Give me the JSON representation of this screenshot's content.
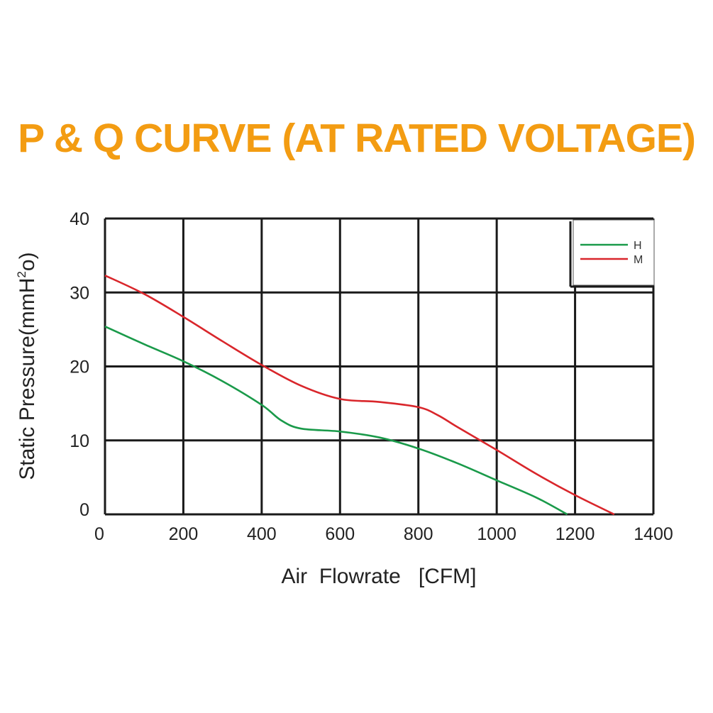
{
  "title": "P & Q CURVE (AT RATED VOLTAGE)",
  "colors": {
    "title": "#f39c12",
    "grid": "#1a1a1a",
    "H": "#1a9a4a",
    "M": "#d9262b"
  },
  "chart_data": {
    "type": "line",
    "title": "P & Q CURVE (AT RATED VOLTAGE)",
    "xlabel": "Air  Flowrate   [CFM]",
    "ylabel_main": "Static Pressure(mmH",
    "ylabel_sup1": "2",
    "ylabel_mid": "o",
    "ylabel_end": ")",
    "xlim": [
      0,
      1400
    ],
    "ylim": [
      0,
      40
    ],
    "xticks": [
      "0",
      "200",
      "400",
      "600",
      "800",
      "1000",
      "1200",
      "1400"
    ],
    "yticks": [
      "0",
      "10",
      "20",
      "30",
      "40"
    ],
    "grid": true,
    "legend_position": "top-right",
    "series": [
      {
        "name": "H",
        "color": "#1a9a4a",
        "x": [
          0,
          100,
          200,
          300,
          400,
          450,
          500,
          600,
          700,
          800,
          900,
          1000,
          1100,
          1180
        ],
        "y": [
          25.4,
          23.0,
          20.7,
          18.0,
          14.8,
          12.7,
          11.6,
          11.2,
          10.4,
          8.9,
          6.9,
          4.6,
          2.3,
          0
        ]
      },
      {
        "name": "M",
        "color": "#d9262b",
        "x": [
          0,
          100,
          200,
          300,
          400,
          500,
          600,
          700,
          800,
          850,
          900,
          1000,
          1100,
          1200,
          1300
        ],
        "y": [
          32.3,
          29.8,
          26.7,
          23.4,
          20.2,
          17.4,
          15.6,
          15.2,
          14.5,
          13.4,
          11.8,
          8.7,
          5.5,
          2.6,
          0
        ]
      }
    ]
  }
}
